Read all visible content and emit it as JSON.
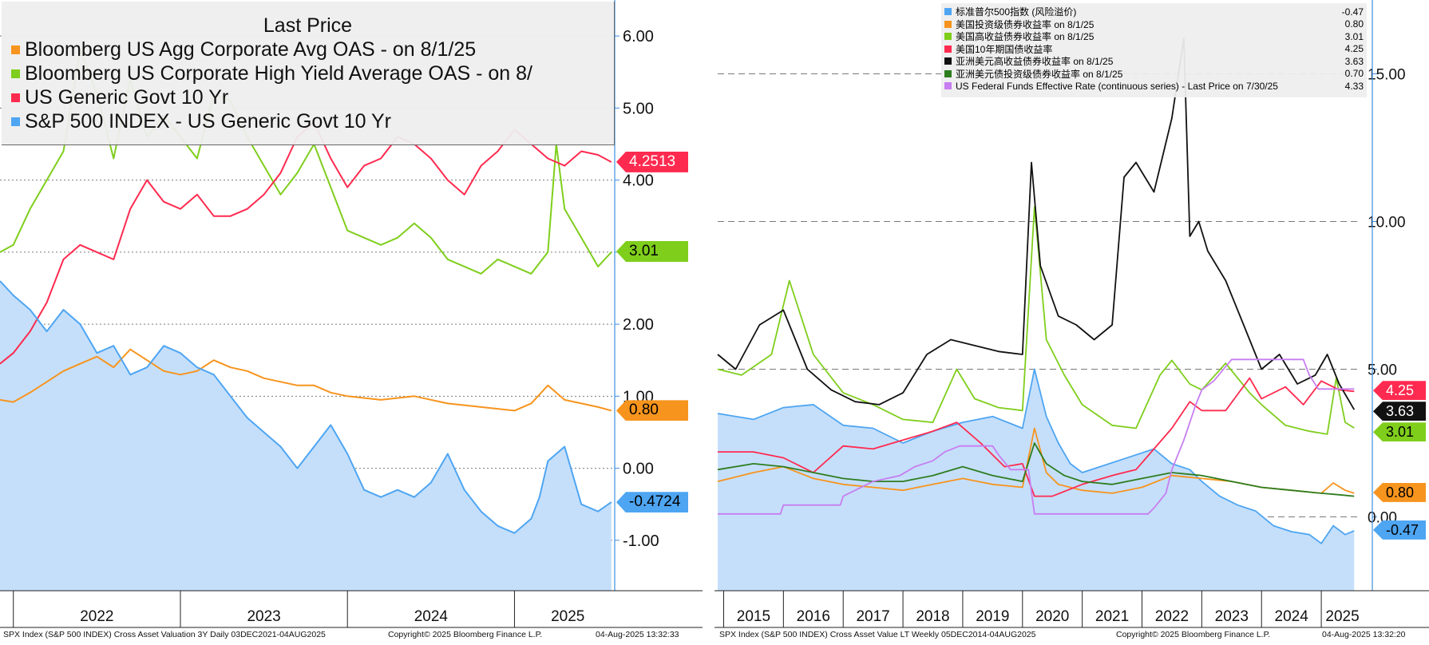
{
  "left_chart": {
    "legend_title": "Last Price",
    "legend": [
      {
        "label": "Bloomberg US Agg Corporate Avg OAS -  on 8/1/25",
        "color": "#f7941d"
      },
      {
        "label": "Bloomberg US Corporate High Yield Average OAS -  on 8/",
        "color": "#7fce1c"
      },
      {
        "label": "US Generic Govt 10 Yr",
        "color": "#ff2a4f"
      },
      {
        "label": "S&P 500 INDEX - US Generic Govt 10 Yr",
        "color": "#4ea5f2"
      }
    ],
    "badges": [
      {
        "text": "4.2513",
        "color": "#ff2a4f",
        "text_color": "#ffffff"
      },
      {
        "text": "3.01",
        "color": "#7fce1c",
        "text_color": "#000000"
      },
      {
        "text": "0.80",
        "color": "#f7941d",
        "text_color": "#000000"
      },
      {
        "text": "-0.4724",
        "color": "#4ea5f2",
        "text_color": "#000000"
      }
    ],
    "footer_left": "SPX Index (S&P 500 INDEX) Cross Asset Valuation 3Y  Daily 03DEC2021-04AUG2025",
    "footer_mid": "Copyright© 2025 Bloomberg Finance L.P.",
    "footer_right": "04-Aug-2025 13:32:33"
  },
  "right_chart": {
    "legend": [
      {
        "label": "标准普尔500指数 (风险溢价)",
        "value": "-0.47",
        "color": "#4ea5f2"
      },
      {
        "label": "美国投资级债券收益率 on 8/1/25",
        "value": "0.80",
        "color": "#f7941d"
      },
      {
        "label": "美国高收益债券收益率 on 8/1/25",
        "value": "3.01",
        "color": "#7fce1c"
      },
      {
        "label": "美国10年期国债收益率",
        "value": "4.25",
        "color": "#ff2a4f"
      },
      {
        "label": "亚洲美元高收益债券收益率 on 8/1/25",
        "value": "3.63",
        "color": "#111111"
      },
      {
        "label": "亚洲美元债投资级债券收益率 on 8/1/25",
        "value": "0.70",
        "color": "#2e7d1e"
      },
      {
        "label": "US Federal Funds Effective Rate (continuous series) - Last Price on 7/30/25",
        "value": "4.33",
        "color": "#c77ef0"
      }
    ],
    "badges": [
      {
        "text": "4.25",
        "color": "#ff2a4f",
        "text_color": "#ffffff"
      },
      {
        "text": "3.63",
        "color": "#111111",
        "text_color": "#ffffff"
      },
      {
        "text": "3.01",
        "color": "#7fce1c",
        "text_color": "#000000"
      },
      {
        "text": "0.80",
        "color": "#f7941d",
        "text_color": "#000000"
      },
      {
        "text": "-0.47",
        "color": "#4ea5f2",
        "text_color": "#000000"
      }
    ],
    "footer_left": "SPX Index (S&P 500 INDEX) Cross Asset Value LT  Weekly 05DEC2014-04AUG2025",
    "footer_mid": "Copyright© 2025 Bloomberg Finance L.P.",
    "footer_right": "04-Aug-2025 13:32:20"
  },
  "chart_data": [
    {
      "type": "line",
      "title": "",
      "x_ticks": [
        "2022",
        "2023",
        "2024",
        "2025"
      ],
      "y_ticks": [
        "6.00",
        "5.00",
        "4.00",
        "3.00",
        "2.00",
        "1.00",
        "0.00",
        "-1.00"
      ],
      "ylim": [
        -1.7,
        6.5
      ],
      "xlim": [
        2021.92,
        2025.6
      ],
      "grid": true,
      "legend_position": "top-left",
      "series": [
        {
          "name": "Bloomberg US Agg Corporate Avg OAS -  on 8/1/25",
          "color": "#f7941d",
          "x": [
            2021.92,
            2022.0,
            2022.1,
            2022.2,
            2022.3,
            2022.4,
            2022.5,
            2022.6,
            2022.7,
            2022.8,
            2022.9,
            2023.0,
            2023.1,
            2023.2,
            2023.3,
            2023.4,
            2023.5,
            2023.6,
            2023.7,
            2023.8,
            2023.9,
            2024.0,
            2024.2,
            2024.4,
            2024.6,
            2024.8,
            2025.0,
            2025.1,
            2025.2,
            2025.3,
            2025.4,
            2025.5,
            2025.58
          ],
          "y": [
            0.95,
            0.92,
            1.05,
            1.2,
            1.35,
            1.45,
            1.55,
            1.4,
            1.65,
            1.5,
            1.35,
            1.3,
            1.35,
            1.5,
            1.4,
            1.35,
            1.25,
            1.2,
            1.15,
            1.15,
            1.05,
            1.0,
            0.95,
            1.0,
            0.9,
            0.85,
            0.8,
            0.9,
            1.15,
            0.95,
            0.9,
            0.85,
            0.8
          ]
        },
        {
          "name": "Bloomberg US Corporate High Yield Average OAS -  on 8/",
          "color": "#7fce1c",
          "x": [
            2021.92,
            2022.0,
            2022.1,
            2022.2,
            2022.3,
            2022.4,
            2022.5,
            2022.6,
            2022.7,
            2022.8,
            2022.9,
            2023.0,
            2023.1,
            2023.2,
            2023.3,
            2023.4,
            2023.5,
            2023.6,
            2023.7,
            2023.8,
            2023.9,
            2024.0,
            2024.1,
            2024.2,
            2024.3,
            2024.4,
            2024.5,
            2024.6,
            2024.7,
            2024.8,
            2024.9,
            2025.0,
            2025.1,
            2025.2,
            2025.25,
            2025.3,
            2025.4,
            2025.5,
            2025.58
          ],
          "y": [
            3.0,
            3.1,
            3.6,
            4.0,
            4.4,
            5.8,
            5.2,
            4.3,
            5.4,
            4.6,
            4.9,
            4.6,
            4.3,
            5.2,
            5.1,
            4.6,
            4.2,
            3.8,
            4.1,
            4.5,
            3.9,
            3.3,
            3.2,
            3.1,
            3.2,
            3.4,
            3.2,
            2.9,
            2.8,
            2.7,
            2.9,
            2.8,
            2.7,
            3.0,
            4.5,
            3.6,
            3.2,
            2.8,
            3.0
          ]
        },
        {
          "name": "US Generic Govt 10 Yr",
          "color": "#ff2a4f",
          "x": [
            2021.92,
            2022.0,
            2022.1,
            2022.2,
            2022.3,
            2022.4,
            2022.5,
            2022.6,
            2022.7,
            2022.8,
            2022.9,
            2023.0,
            2023.1,
            2023.2,
            2023.3,
            2023.4,
            2023.5,
            2023.6,
            2023.7,
            2023.8,
            2023.9,
            2024.0,
            2024.1,
            2024.2,
            2024.3,
            2024.4,
            2024.5,
            2024.6,
            2024.7,
            2024.8,
            2024.9,
            2025.0,
            2025.1,
            2025.2,
            2025.3,
            2025.4,
            2025.5,
            2025.58
          ],
          "y": [
            1.45,
            1.6,
            1.9,
            2.3,
            2.9,
            3.1,
            3.0,
            2.9,
            3.6,
            4.0,
            3.7,
            3.6,
            3.8,
            3.5,
            3.5,
            3.6,
            3.8,
            4.1,
            4.6,
            4.8,
            4.3,
            3.9,
            4.2,
            4.3,
            4.6,
            4.5,
            4.3,
            4.0,
            3.8,
            4.2,
            4.4,
            4.7,
            4.5,
            4.3,
            4.2,
            4.4,
            4.35,
            4.25
          ]
        },
        {
          "name": "S&P 500 INDEX - US Generic Govt 10 Yr",
          "color": "#4ea5f2",
          "x": [
            2021.92,
            2022.0,
            2022.1,
            2022.2,
            2022.3,
            2022.4,
            2022.5,
            2022.6,
            2022.7,
            2022.8,
            2022.9,
            2023.0,
            2023.1,
            2023.2,
            2023.3,
            2023.4,
            2023.5,
            2023.6,
            2023.7,
            2023.8,
            2023.9,
            2024.0,
            2024.1,
            2024.2,
            2024.3,
            2024.4,
            2024.5,
            2024.6,
            2024.7,
            2024.8,
            2024.9,
            2025.0,
            2025.1,
            2025.15,
            2025.2,
            2025.3,
            2025.4,
            2025.5,
            2025.58
          ],
          "y": [
            2.6,
            2.4,
            2.2,
            1.9,
            2.2,
            2.0,
            1.6,
            1.7,
            1.3,
            1.4,
            1.7,
            1.6,
            1.4,
            1.3,
            1.0,
            0.7,
            0.5,
            0.3,
            0.0,
            0.3,
            0.6,
            0.2,
            -0.3,
            -0.4,
            -0.3,
            -0.4,
            -0.2,
            0.2,
            -0.3,
            -0.6,
            -0.8,
            -0.9,
            -0.7,
            -0.4,
            0.1,
            0.3,
            -0.5,
            -0.6,
            -0.47
          ]
        }
      ]
    },
    {
      "type": "line",
      "title": "",
      "x_ticks": [
        "2015",
        "2016",
        "2017",
        "2018",
        "2019",
        "2020",
        "2021",
        "2022",
        "2023",
        "2024",
        "2025"
      ],
      "y_ticks": [
        "15.00",
        "10.00",
        "5.00",
        "0.00"
      ],
      "ylim": [
        -2.5,
        17.5
      ],
      "xlim": [
        2014.9,
        2025.6
      ],
      "grid": true,
      "legend_position": "top-right",
      "series": [
        {
          "name": "标准普尔500指数 (风险溢价)",
          "color": "#4ea5f2",
          "x": [
            2014.9,
            2015.5,
            2016.0,
            2016.5,
            2017.0,
            2017.5,
            2018.0,
            2018.5,
            2019.0,
            2019.5,
            2020.0,
            2020.2,
            2020.4,
            2020.6,
            2020.8,
            2021.0,
            2021.3,
            2021.6,
            2021.9,
            2022.2,
            2022.5,
            2022.8,
            2023.0,
            2023.3,
            2023.6,
            2023.9,
            2024.2,
            2024.5,
            2024.8,
            2025.0,
            2025.2,
            2025.4,
            2025.55
          ],
          "y": [
            3.5,
            3.3,
            3.7,
            3.8,
            3.1,
            3.0,
            2.5,
            2.9,
            3.2,
            3.4,
            3.0,
            5.0,
            3.4,
            2.5,
            1.8,
            1.5,
            1.7,
            1.9,
            2.1,
            2.3,
            1.8,
            1.6,
            1.2,
            0.7,
            0.4,
            0.2,
            -0.3,
            -0.5,
            -0.6,
            -0.9,
            -0.3,
            -0.6,
            -0.47
          ]
        },
        {
          "name": "美国投资级债券收益率 on 8/1/25",
          "color": "#f7941d",
          "x": [
            2014.9,
            2015.5,
            2016.0,
            2016.5,
            2017.0,
            2017.5,
            2018.0,
            2018.5,
            2019.0,
            2019.5,
            2020.0,
            2020.2,
            2020.4,
            2020.6,
            2021.0,
            2021.5,
            2022.0,
            2022.5,
            2023.0,
            2023.5,
            2024.0,
            2024.5,
            2025.0,
            2025.2,
            2025.4,
            2025.55
          ],
          "y": [
            1.2,
            1.5,
            1.7,
            1.3,
            1.1,
            1.0,
            0.9,
            1.1,
            1.3,
            1.1,
            1.0,
            3.0,
            1.5,
            1.1,
            0.9,
            0.8,
            1.0,
            1.4,
            1.3,
            1.2,
            1.0,
            0.9,
            0.8,
            1.15,
            0.9,
            0.8
          ]
        },
        {
          "name": "美国高收益债券收益率 on 8/1/25",
          "color": "#7fce1c",
          "x": [
            2014.9,
            2015.3,
            2015.8,
            2016.1,
            2016.5,
            2017.0,
            2017.5,
            2018.0,
            2018.5,
            2018.9,
            2019.2,
            2019.6,
            2020.0,
            2020.2,
            2020.4,
            2020.7,
            2021.0,
            2021.5,
            2021.9,
            2022.3,
            2022.5,
            2022.8,
            2023.0,
            2023.4,
            2023.8,
            2024.0,
            2024.4,
            2024.8,
            2025.1,
            2025.25,
            2025.4,
            2025.55
          ],
          "y": [
            5.0,
            4.8,
            5.5,
            8.0,
            5.5,
            4.2,
            3.8,
            3.3,
            3.2,
            5.0,
            4.0,
            3.7,
            3.6,
            10.5,
            6.0,
            4.8,
            3.8,
            3.1,
            3.0,
            4.8,
            5.3,
            4.5,
            4.3,
            5.2,
            4.2,
            3.8,
            3.1,
            2.9,
            2.8,
            4.7,
            3.2,
            3.01
          ]
        },
        {
          "name": "美国10年期国债收益率",
          "color": "#ff2a4f",
          "x": [
            2014.9,
            2015.5,
            2016.0,
            2016.5,
            2017.0,
            2017.5,
            2018.0,
            2018.5,
            2018.9,
            2019.3,
            2019.7,
            2020.0,
            2020.2,
            2020.5,
            2021.0,
            2021.5,
            2021.9,
            2022.2,
            2022.5,
            2022.8,
            2023.0,
            2023.4,
            2023.8,
            2024.0,
            2024.4,
            2024.7,
            2025.0,
            2025.3,
            2025.55
          ],
          "y": [
            2.2,
            2.2,
            2.0,
            1.5,
            2.4,
            2.3,
            2.6,
            2.9,
            3.2,
            2.5,
            1.7,
            1.8,
            0.7,
            0.7,
            1.1,
            1.4,
            1.6,
            2.3,
            3.0,
            3.9,
            3.6,
            3.6,
            4.7,
            4.0,
            4.4,
            3.8,
            4.6,
            4.3,
            4.25
          ]
        },
        {
          "name": "亚洲美元高收益债券收益率 on 8/1/25",
          "color": "#111111",
          "x": [
            2014.9,
            2015.2,
            2015.6,
            2016.0,
            2016.4,
            2016.8,
            2017.2,
            2017.6,
            2018.0,
            2018.4,
            2018.8,
            2019.2,
            2019.6,
            2020.0,
            2020.15,
            2020.3,
            2020.6,
            2020.9,
            2021.2,
            2021.5,
            2021.7,
            2021.9,
            2022.2,
            2022.5,
            2022.7,
            2022.8,
            2022.95,
            2023.1,
            2023.4,
            2023.7,
            2024.0,
            2024.3,
            2024.6,
            2024.9,
            2025.1,
            2025.3,
            2025.55
          ],
          "y": [
            5.5,
            5.0,
            6.5,
            7.0,
            5.0,
            4.3,
            3.9,
            3.8,
            4.2,
            5.5,
            6.0,
            5.8,
            5.6,
            5.5,
            12.0,
            8.5,
            6.8,
            6.5,
            6.0,
            6.5,
            11.5,
            12.0,
            11.0,
            13.5,
            16.2,
            9.5,
            10.0,
            9.0,
            8.0,
            6.5,
            5.0,
            5.5,
            4.5,
            4.8,
            5.5,
            4.5,
            3.63
          ]
        },
        {
          "name": "亚洲美元债投资级债券收益率 on 8/1/25",
          "color": "#2e7d1e",
          "x": [
            2014.9,
            2015.5,
            2016.0,
            2016.5,
            2017.0,
            2017.5,
            2018.0,
            2018.5,
            2019.0,
            2019.5,
            2020.0,
            2020.2,
            2020.4,
            2020.7,
            2021.0,
            2021.5,
            2022.0,
            2022.5,
            2023.0,
            2023.5,
            2024.0,
            2024.5,
            2025.0,
            2025.3,
            2025.55
          ],
          "y": [
            1.6,
            1.8,
            1.7,
            1.5,
            1.3,
            1.2,
            1.2,
            1.4,
            1.7,
            1.4,
            1.2,
            2.5,
            1.8,
            1.4,
            1.2,
            1.1,
            1.3,
            1.5,
            1.4,
            1.2,
            1.0,
            0.9,
            0.8,
            0.75,
            0.7
          ]
        },
        {
          "name": "US Federal Funds Effective Rate (continuous series) - Last Price on 7/30/25",
          "color": "#c77ef0",
          "x": [
            2014.9,
            2015.95,
            2016.0,
            2016.95,
            2017.0,
            2017.2,
            2017.5,
            2017.95,
            2018.2,
            2018.5,
            2018.7,
            2018.95,
            2019.5,
            2019.6,
            2019.8,
            2020.1,
            2020.2,
            2022.1,
            2022.2,
            2022.4,
            2022.5,
            2022.7,
            2022.9,
            2023.0,
            2023.2,
            2023.5,
            2024.7,
            2024.8,
            2024.95,
            2025.55
          ],
          "y": [
            0.1,
            0.1,
            0.4,
            0.4,
            0.7,
            0.9,
            1.2,
            1.4,
            1.7,
            1.9,
            2.2,
            2.4,
            2.4,
            2.1,
            1.6,
            1.6,
            0.1,
            0.1,
            0.3,
            0.8,
            1.6,
            2.6,
            3.8,
            4.3,
            4.6,
            5.33,
            5.33,
            4.8,
            4.33,
            4.33
          ]
        }
      ]
    }
  ]
}
